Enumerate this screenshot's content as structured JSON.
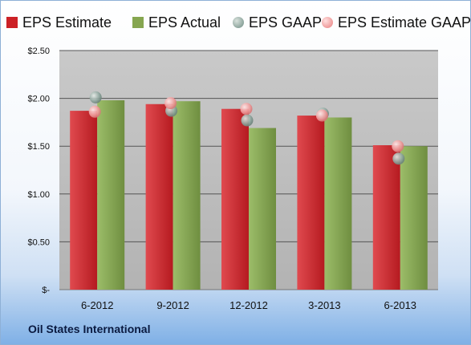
{
  "chart_data": {
    "type": "bar",
    "categories": [
      "6-2012",
      "9-2012",
      "12-2012",
      "3-2013",
      "6-2013"
    ],
    "series": [
      {
        "name": "EPS Estimate",
        "kind": "bar",
        "color": "#cc2126",
        "values": [
          1.87,
          1.94,
          1.89,
          1.82,
          1.51
        ]
      },
      {
        "name": "EPS Actual",
        "kind": "bar",
        "color": "#86a650",
        "values": [
          1.98,
          1.97,
          1.69,
          1.8,
          1.5
        ]
      },
      {
        "name": "EPS GAAP",
        "kind": "point",
        "color": "#8da59d",
        "values": [
          2.01,
          1.87,
          1.77,
          1.84,
          1.37
        ]
      },
      {
        "name": "EPS Estimate GAAP",
        "kind": "point",
        "color": "#ef9a9a",
        "values": [
          1.86,
          1.95,
          1.89,
          1.82,
          1.5
        ]
      }
    ],
    "y_ticks": [
      "$-",
      "$0.50",
      "$1.00",
      "$1.50",
      "$2.00",
      "$2.50"
    ],
    "ylim": [
      0,
      2.5
    ],
    "grid": true,
    "legend_position": "top"
  },
  "footer": {
    "company": "Oil States International"
  }
}
